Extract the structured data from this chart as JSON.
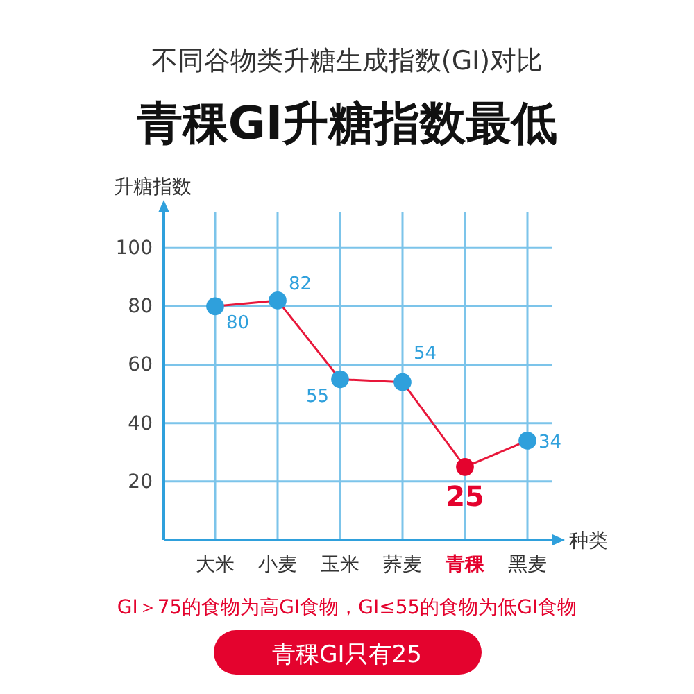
{
  "chart_data": {
    "type": "line",
    "subtitle": "不同谷物类升糖生成指数(GI)对比",
    "title": "青稞GI升糖指数最低",
    "xlabel": "种类",
    "ylabel": "升糖指数",
    "categories": [
      "大米",
      "小麦",
      "玉米",
      "荞麦",
      "青稞",
      "黑麦"
    ],
    "series": [
      {
        "color": "#e8173a",
        "colors": [
          "#2fa0dc",
          "#2fa0dc",
          "#2fa0dc",
          "#2fa0dc",
          "#e4032e",
          "#2fa0dc"
        ],
        "values": [
          80,
          82,
          55,
          54,
          25,
          34
        ]
      }
    ],
    "ylim": [
      0,
      115
    ],
    "yticks": [
      20,
      40,
      60,
      80,
      100
    ],
    "grid": true,
    "marker": "circle",
    "line_style": "solid",
    "data_labels": true,
    "annotations": [
      "GI＞75的食物为高GI食物，GI≤55的食物为低GI食物",
      "青稞GI只有25"
    ]
  }
}
